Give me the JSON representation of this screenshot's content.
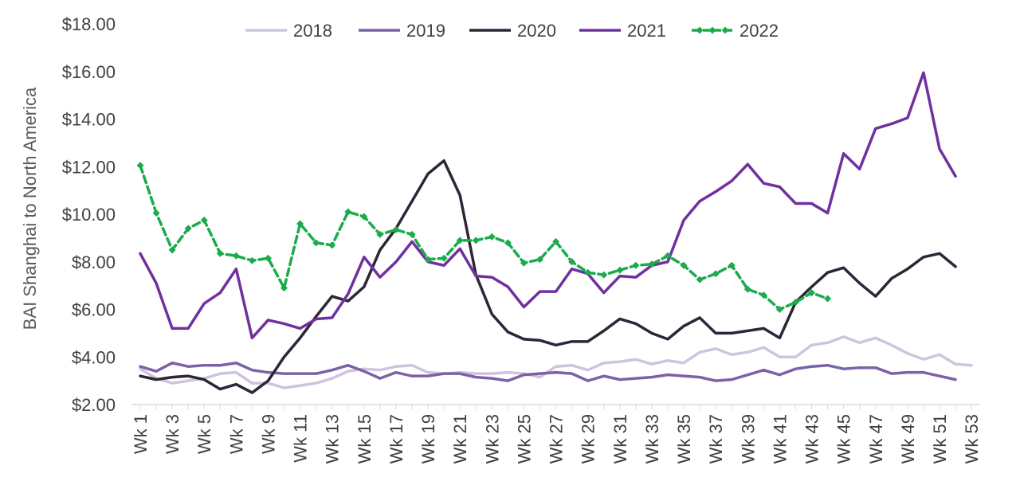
{
  "chart_data": {
    "type": "line",
    "ylabel": "BAI Shanghai to North America",
    "xlabel": "",
    "title": "",
    "ylim": [
      2,
      18
    ],
    "y_ticks": [
      2,
      4,
      6,
      8,
      10,
      12,
      14,
      16,
      18
    ],
    "y_tick_labels": [
      "$2.00",
      "$4.00",
      "$6.00",
      "$8.00",
      "$10.00",
      "$12.00",
      "$14.00",
      "$16.00",
      "$18.00"
    ],
    "categories": [
      "Wk 1",
      "Wk 2",
      "Wk 3",
      "Wk 4",
      "Wk 5",
      "Wk 6",
      "Wk 7",
      "Wk 8",
      "Wk 9",
      "Wk 10",
      "Wk 11",
      "Wk 12",
      "Wk 13",
      "Wk 14",
      "Wk 15",
      "Wk 16",
      "Wk 17",
      "Wk 18",
      "Wk 19",
      "Wk 20",
      "Wk 21",
      "Wk 22",
      "Wk 23",
      "Wk 24",
      "Wk 25",
      "Wk 26",
      "Wk 27",
      "Wk 28",
      "Wk 29",
      "Wk 30",
      "Wk 31",
      "Wk 32",
      "Wk 33",
      "Wk 34",
      "Wk 35",
      "Wk 36",
      "Wk 37",
      "Wk 38",
      "Wk 39",
      "Wk 40",
      "Wk 41",
      "Wk 42",
      "Wk 43",
      "Wk 44",
      "Wk 45",
      "Wk 46",
      "Wk 47",
      "Wk 48",
      "Wk 49",
      "Wk 50",
      "Wk 51",
      "Wk 52",
      "Wk 53"
    ],
    "x_tick_labels": [
      "Wk 1",
      "Wk 3",
      "Wk 5",
      "Wk 7",
      "Wk 9",
      "Wk 11",
      "Wk 13",
      "Wk 15",
      "Wk 17",
      "Wk 19",
      "Wk 21",
      "Wk 23",
      "Wk 25",
      "Wk 27",
      "Wk 29",
      "Wk 31",
      "Wk 33",
      "Wk 35",
      "Wk 37",
      "Wk 39",
      "Wk 41",
      "Wk 43",
      "Wk 45",
      "Wk 47",
      "Wk 49",
      "Wk 51",
      "Wk 53"
    ],
    "grid": false,
    "legend_position": "top",
    "series": [
      {
        "name": "2018",
        "color": "#cfc4de",
        "markers": false,
        "values": [
          3.5,
          3.1,
          2.9,
          3.0,
          3.1,
          3.3,
          3.35,
          2.9,
          2.9,
          2.7,
          2.8,
          2.9,
          3.1,
          3.4,
          3.5,
          3.45,
          3.6,
          3.65,
          3.35,
          3.3,
          3.35,
          3.3,
          3.3,
          3.35,
          3.3,
          3.15,
          3.6,
          3.65,
          3.45,
          3.75,
          3.8,
          3.9,
          3.7,
          3.85,
          3.75,
          4.2,
          4.35,
          4.1,
          4.2,
          4.4,
          4.0,
          4.0,
          4.5,
          4.6,
          4.85,
          4.6,
          4.8,
          4.5,
          4.15,
          3.9,
          4.1,
          3.7,
          3.65
        ]
      },
      {
        "name": "2019",
        "color": "#7b62a6",
        "markers": false,
        "values": [
          3.6,
          3.4,
          3.75,
          3.6,
          3.65,
          3.65,
          3.75,
          3.45,
          3.35,
          3.3,
          3.3,
          3.3,
          3.45,
          3.65,
          3.4,
          3.1,
          3.35,
          3.2,
          3.2,
          3.3,
          3.3,
          3.15,
          3.1,
          3.0,
          3.25,
          3.3,
          3.35,
          3.3,
          3.0,
          3.2,
          3.05,
          3.1,
          3.15,
          3.25,
          3.2,
          3.15,
          3.0,
          3.05,
          3.25,
          3.45,
          3.25,
          3.5,
          3.6,
          3.65,
          3.5,
          3.55,
          3.55,
          3.3,
          3.35,
          3.35,
          3.2,
          3.05,
          null
        ]
      },
      {
        "name": "2020",
        "color": "#2e2537",
        "markers": false,
        "values": [
          3.2,
          3.05,
          3.15,
          3.2,
          3.05,
          2.65,
          2.85,
          2.5,
          3.0,
          4.0,
          4.8,
          5.7,
          6.55,
          6.35,
          6.95,
          8.5,
          9.4,
          10.55,
          11.7,
          12.25,
          10.8,
          7.45,
          5.8,
          5.05,
          4.75,
          4.7,
          4.5,
          4.65,
          4.65,
          5.1,
          5.6,
          5.4,
          5.0,
          4.75,
          5.3,
          5.65,
          5.0,
          5.0,
          5.1,
          5.2,
          4.8,
          6.3,
          6.95,
          7.55,
          7.75,
          7.1,
          6.55,
          7.3,
          7.7,
          8.2,
          8.35,
          7.8,
          null
        ]
      },
      {
        "name": "2021",
        "color": "#7030a0",
        "markers": false,
        "values": [
          8.35,
          7.1,
          5.2,
          5.2,
          6.25,
          6.7,
          7.7,
          4.8,
          5.55,
          5.4,
          5.2,
          5.6,
          5.65,
          6.65,
          8.2,
          7.35,
          8.0,
          8.85,
          8.0,
          7.85,
          8.55,
          7.4,
          7.35,
          6.95,
          6.1,
          6.75,
          6.75,
          7.7,
          7.5,
          6.7,
          7.4,
          7.35,
          7.85,
          8.0,
          9.75,
          10.55,
          10.95,
          11.4,
          12.1,
          11.3,
          11.15,
          10.45,
          10.45,
          10.05,
          12.55,
          11.9,
          13.6,
          13.8,
          14.05,
          15.95,
          12.75,
          11.6,
          null
        ]
      },
      {
        "name": "2022",
        "color": "#1aab4b",
        "markers": true,
        "dashed": true,
        "values": [
          12.05,
          10.05,
          8.5,
          9.4,
          9.75,
          8.35,
          8.25,
          8.05,
          8.15,
          6.9,
          9.6,
          8.8,
          8.7,
          10.1,
          9.9,
          9.15,
          9.35,
          9.15,
          8.1,
          8.15,
          8.9,
          8.9,
          9.05,
          8.8,
          7.95,
          8.1,
          8.85,
          8.0,
          7.55,
          7.45,
          7.65,
          7.85,
          7.9,
          8.25,
          7.85,
          7.25,
          7.5,
          7.85,
          6.85,
          6.6,
          6.0,
          6.3,
          6.7,
          6.45,
          null,
          null,
          null,
          null,
          null,
          null,
          null,
          null,
          null
        ]
      }
    ]
  }
}
